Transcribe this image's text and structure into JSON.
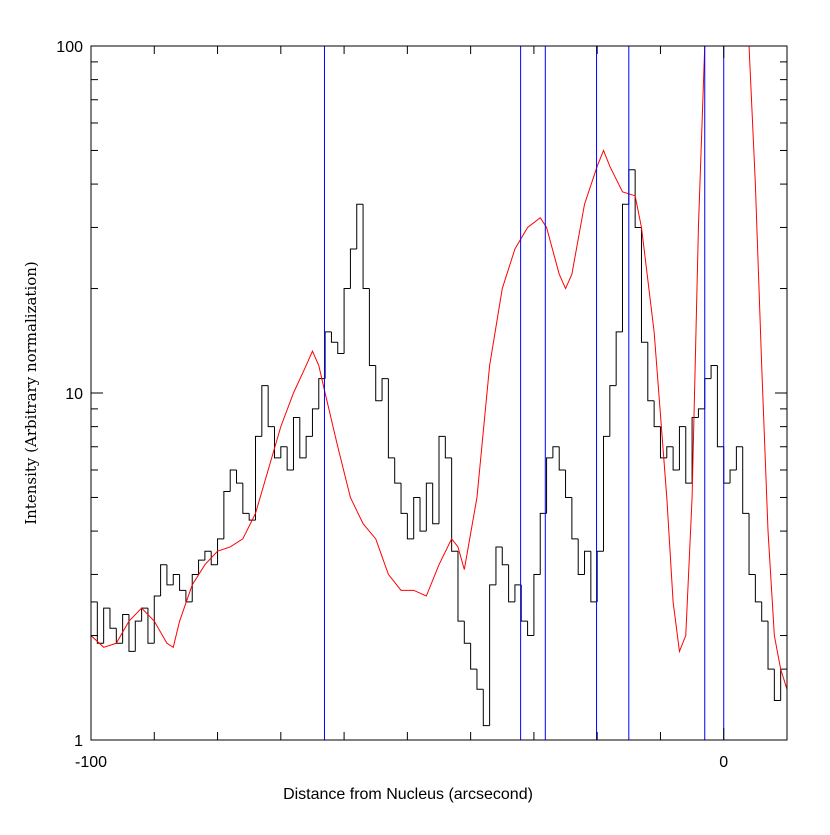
{
  "chart_data": {
    "type": "step-and-line",
    "xlabel": "Distance from Nucleus (arcsecond)",
    "ylabel": "Intensity (Arbitrary normalization)",
    "xlim": [
      -100,
      10
    ],
    "ylim": [
      1,
      100
    ],
    "log_y": true,
    "xticks": [
      -100,
      0
    ],
    "xminorticks": [
      -90,
      -80,
      -70,
      -60,
      -50,
      -40,
      -30,
      -20,
      -10,
      10
    ],
    "yticks": [
      1,
      10,
      100
    ],
    "yminorticks": [
      2,
      3,
      4,
      5,
      6,
      7,
      8,
      9,
      20,
      30,
      40,
      50,
      60,
      70,
      80,
      90
    ],
    "histogram": {
      "color": "#000000",
      "bins": [
        -100,
        -99,
        -98,
        -97,
        -96,
        -95,
        -94,
        -93,
        -92,
        -91,
        -90,
        -89,
        -88,
        -87,
        -86,
        -85,
        -84,
        -83,
        -82,
        -81,
        -80,
        -79,
        -78,
        -77,
        -76,
        -75,
        -74,
        -73,
        -72,
        -71,
        -70,
        -69,
        -68,
        -67,
        -66,
        -65,
        -64,
        -63,
        -62,
        -61,
        -60,
        -59,
        -58,
        -57,
        -56,
        -55,
        -54,
        -53,
        -52,
        -51,
        -50,
        -49,
        -48,
        -47,
        -46,
        -45,
        -44,
        -43,
        -42,
        -41,
        -40,
        -39,
        -38,
        -37,
        -36,
        -35,
        -34,
        -33,
        -32,
        -31,
        -30,
        -29,
        -28,
        -27,
        -26,
        -25,
        -24,
        -23,
        -22,
        -21,
        -20,
        -19,
        -18,
        -17,
        -16,
        -15,
        -14,
        -13,
        -12,
        -11,
        -10,
        -9,
        -8,
        -7,
        -6,
        -5,
        -4,
        -3,
        -2,
        -1,
        0,
        1,
        2,
        3,
        4,
        5,
        6,
        7,
        8,
        9,
        10
      ],
      "values": [
        2.5,
        1.9,
        2.4,
        2.1,
        1.9,
        2.3,
        1.8,
        2.2,
        2.4,
        1.9,
        2.6,
        3.2,
        2.8,
        3.0,
        2.7,
        2.5,
        3.0,
        3.3,
        3.5,
        3.2,
        3.8,
        5.2,
        6.0,
        5.5,
        4.5,
        4.3,
        7.5,
        10.5,
        8.0,
        6.5,
        7.0,
        6.0,
        8.5,
        6.5,
        7.5,
        9.0,
        11,
        15,
        14,
        13,
        20,
        26,
        35,
        20,
        12,
        9.5,
        11,
        6.5,
        5.5,
        4.5,
        3.8,
        5.0,
        4.0,
        5.5,
        4.2,
        7.5,
        6.5,
        3.5,
        2.2,
        1.9,
        1.6,
        1.4,
        1.1,
        2.8,
        3.6,
        3.2,
        2.5,
        2.8,
        2.2,
        2.0,
        3.0,
        4.5,
        6.5,
        7.0,
        6.0,
        5.0,
        3.8,
        3.0,
        3.5,
        2.5,
        3.5,
        7.5,
        10.5,
        15,
        35,
        44,
        30,
        14,
        9.5,
        8.0,
        6.5,
        7.0,
        6.0,
        8.0,
        5.5,
        8.5,
        9.0,
        11,
        12,
        7.0,
        5.5,
        6.0,
        7.0,
        4.5,
        3.0,
        2.5,
        2.2,
        1.6,
        1.3,
        1.6
      ]
    },
    "curve": {
      "color": "#ff0000",
      "x": [
        -100,
        -98,
        -96,
        -94,
        -92,
        -90,
        -88,
        -87,
        -86,
        -84,
        -82,
        -80,
        -78,
        -76,
        -74,
        -72,
        -70,
        -68,
        -66,
        -65,
        -64,
        -63,
        -61,
        -59,
        -57,
        -55,
        -53,
        -51,
        -49,
        -47,
        -45,
        -43,
        -42,
        -41,
        -39,
        -37,
        -35,
        -33,
        -31,
        -29,
        -28,
        -26,
        -25,
        -24,
        -22,
        -20,
        -19,
        -18,
        -16,
        -14,
        -13,
        -11,
        -9,
        -8,
        -7,
        -6,
        -5,
        -4,
        -3,
        0,
        4,
        5,
        6,
        7,
        8,
        9,
        10
      ],
      "values": [
        2.0,
        1.85,
        1.9,
        2.2,
        2.4,
        2.2,
        1.9,
        1.85,
        2.2,
        2.8,
        3.2,
        3.5,
        3.6,
        3.8,
        4.5,
        6.0,
        8.0,
        10,
        12,
        13.2,
        12,
        10,
        7.0,
        5.0,
        4.2,
        3.8,
        3.0,
        2.7,
        2.7,
        2.6,
        3.2,
        3.8,
        3.6,
        3.1,
        5.0,
        12,
        20,
        26,
        30,
        32,
        30,
        22,
        20,
        22,
        35,
        45,
        50,
        45,
        38,
        37,
        30,
        15,
        5,
        2.5,
        1.8,
        2.0,
        5,
        30,
        100,
        null,
        100,
        40,
        12,
        4,
        2.0,
        1.6,
        1.4
      ]
    },
    "vlines": {
      "color": "#0000ff",
      "x": [
        -63.1,
        -32.1,
        -28.2,
        -20.1,
        -15.0,
        -3.0,
        0
      ]
    }
  }
}
